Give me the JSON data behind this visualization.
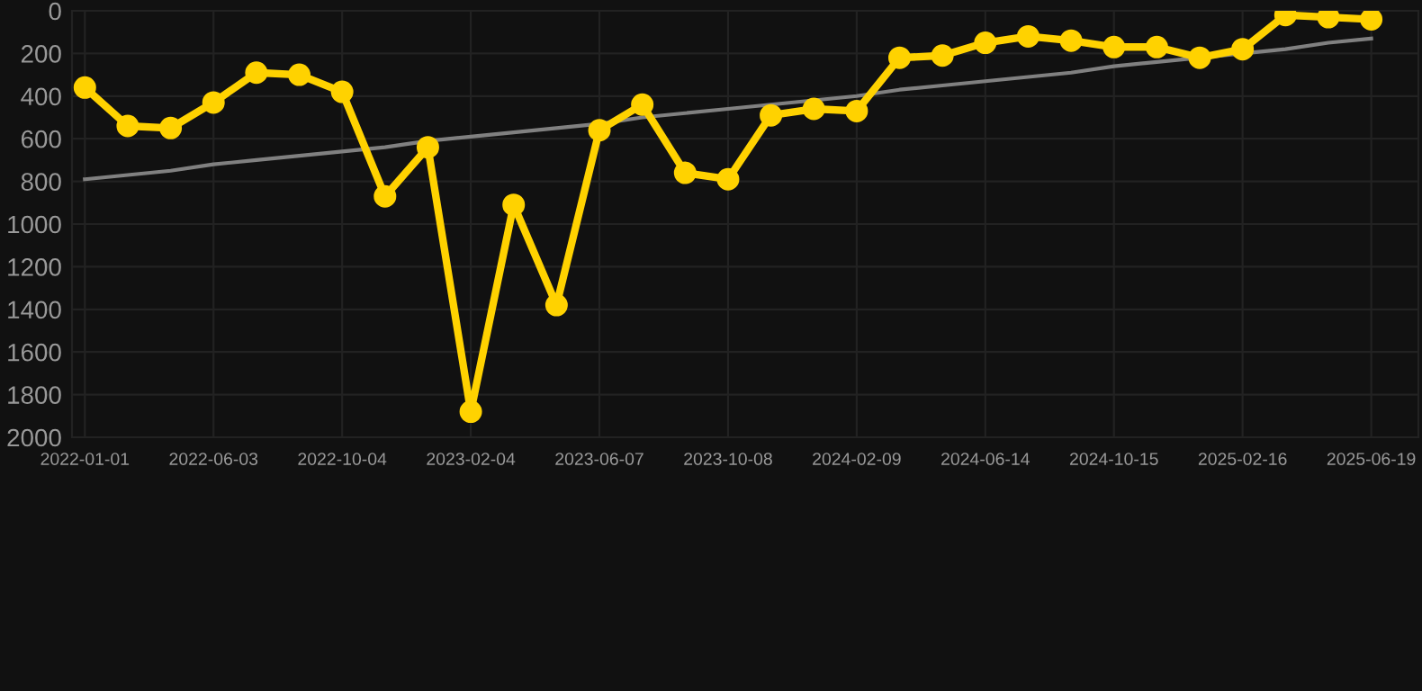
{
  "chart_data": {
    "type": "line",
    "categories": [
      "2022-01-01",
      null,
      null,
      "2022-06-03",
      null,
      null,
      "2022-10-04",
      null,
      null,
      "2023-02-04",
      null,
      null,
      "2023-06-07",
      null,
      null,
      "2023-10-08",
      null,
      null,
      "2024-02-09",
      null,
      null,
      "2024-06-14",
      null,
      null,
      "2024-10-15",
      null,
      null,
      "2025-02-16",
      null,
      null,
      "2025-06-19"
    ],
    "series": [
      {
        "color": "#ffd200",
        "marker": "circle",
        "values": [
          360,
          540,
          550,
          430,
          290,
          300,
          380,
          870,
          640,
          1880,
          910,
          1380,
          560,
          440,
          760,
          790,
          490,
          460,
          470,
          220,
          210,
          150,
          120,
          140,
          170,
          170,
          220,
          180,
          20,
          30,
          40
        ]
      },
      {
        "type": "line",
        "color": "#808080",
        "marker": "none",
        "values": [
          790,
          770,
          750,
          720,
          700,
          680,
          660,
          640,
          610,
          590,
          570,
          550,
          530,
          500,
          480,
          460,
          440,
          420,
          400,
          370,
          350,
          330,
          310,
          290,
          260,
          240,
          220,
          200,
          180,
          150,
          130
        ]
      }
    ],
    "ylim": [
      2000,
      0
    ],
    "yticks": [
      0,
      200,
      400,
      600,
      800,
      1000,
      1200,
      1400,
      1600,
      1800,
      2000
    ],
    "grid": true,
    "legend": false
  }
}
